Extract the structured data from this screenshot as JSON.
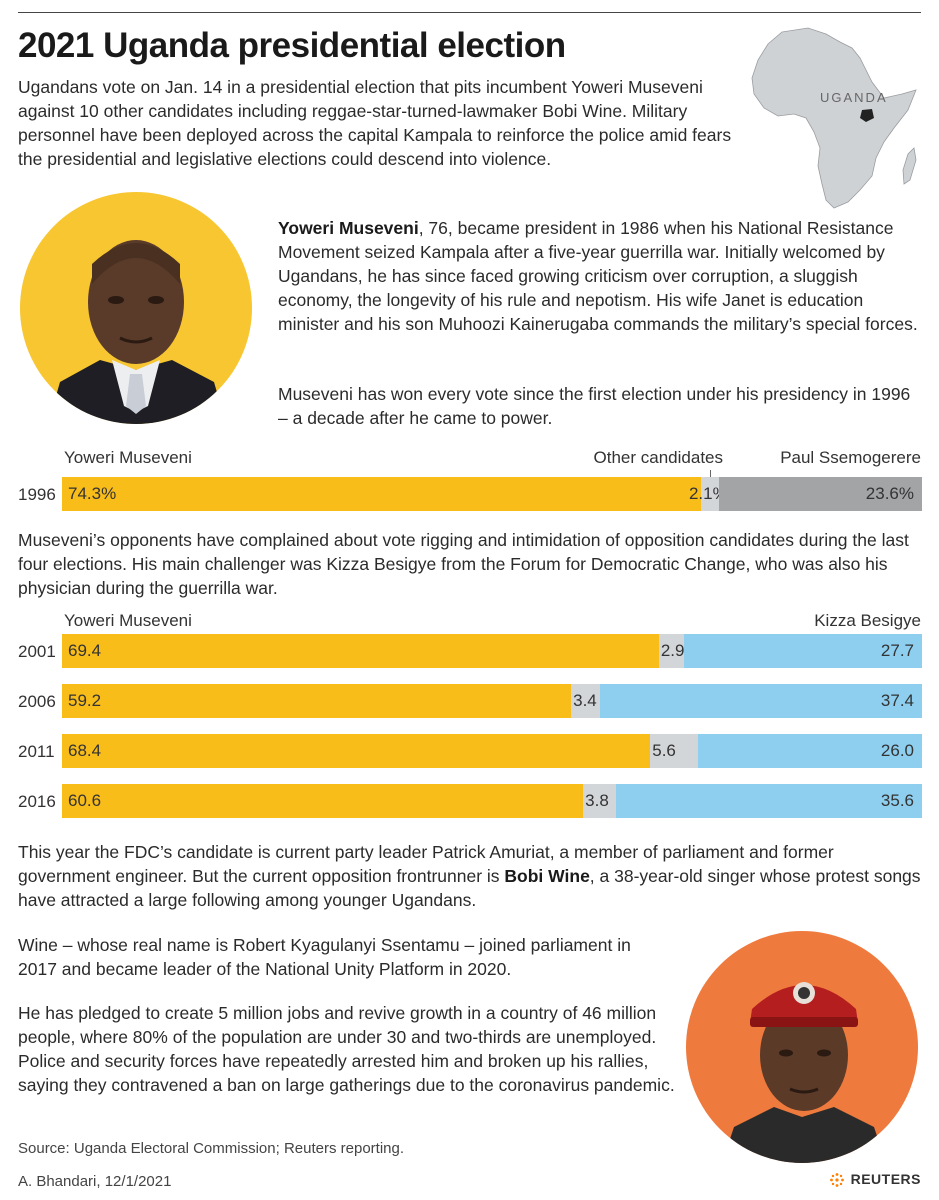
{
  "title": "2021 Uganda presidential election",
  "intro": "Ugandans vote on Jan. 14 in a presidential election that pits incumbent Yoweri Museveni against 10 other candidates including reggae-star-turned-lawmaker Bobi Wine. Military personnel have been deployed across the capital Kampala to reinforce the police amid fears the presidential and legislative elections could descend into violence.",
  "map": {
    "label": "UGANDA"
  },
  "museveni": {
    "name": "Yoweri Museveni",
    "bio_rest": ", 76, became president in 1986 when his National Resistance Movement seized Kampala after a five-year guerrilla war. Initially welcomed by Ugandans, he has since faced growing criticism over corruption, a sluggish economy, the longevity of his rule and nepotism. His wife Janet is education minister and his son Muhoozi Kainerugaba commands the military’s special forces.",
    "bio2": "Museveni has won every vote since the first election under his presidency in 1996 – a decade after he came to power."
  },
  "para_opponents": "Museveni’s opponents have complained about vote rigging and intimidation of opposition candidates during the last four elections. His main challenger was Kizza Besigye from the Forum for Democratic Change, who was also his physician during the guerrilla war.",
  "para_fdc_start": "This year the FDC’s candidate is current party leader Patrick Amuriat, a member of parliament and former government engineer. But the current opposition frontrunner is ",
  "para_fdc_name": "Bobi Wine",
  "para_fdc_end": ", a 38-year-old singer whose protest songs have attracted a large following among younger Ugandans.",
  "para_wine1": "Wine – whose real name is Robert Kyagulanyi Ssentamu – joined parliament in 2017 and became leader of the National Unity Platform in 2020.",
  "para_wine2": "He has pledged to create 5 million jobs and revive growth in a country of 46 million people, where 80% of the population are under 30 and two-thirds are unemployed. Police and security forces have repeatedly arrested him and broken up his rallies, saying they contravened a ban on large gatherings due to the coronavirus pandemic.",
  "source": "Source: Uganda Electoral Commission; Reuters reporting.",
  "credit": "A. Bhandari, 12/1/2021",
  "brand": "REUTERS",
  "colors": {
    "museveni": "#f9bd1a",
    "other": "#d3d6d9",
    "ssemogerere": "#a3a4a6",
    "besigye": "#8ecff0"
  },
  "chart_data": [
    {
      "type": "bar",
      "stacked": true,
      "orientation": "horizontal",
      "categories": [
        "1996"
      ],
      "series": [
        {
          "name": "Yoweri Museveni",
          "values": [
            74.3
          ],
          "labels": [
            "74.3%"
          ]
        },
        {
          "name": "Other candidates",
          "values": [
            2.1
          ],
          "labels": [
            "2.1%"
          ]
        },
        {
          "name": "Paul Ssemogerere",
          "values": [
            23.6
          ],
          "labels": [
            "23.6%"
          ]
        }
      ]
    },
    {
      "type": "bar",
      "stacked": true,
      "orientation": "horizontal",
      "categories": [
        "2001",
        "2006",
        "2011",
        "2016"
      ],
      "series": [
        {
          "name": "Yoweri Museveni",
          "values": [
            69.4,
            59.2,
            68.4,
            60.6
          ],
          "labels": [
            "69.4",
            "59.2",
            "68.4",
            "60.6"
          ]
        },
        {
          "name": "",
          "values": [
            2.9,
            3.4,
            5.6,
            3.8
          ],
          "labels": [
            "2.9",
            "3.4",
            "5.6",
            "3.8"
          ]
        },
        {
          "name": "Kizza Besigye",
          "values": [
            27.7,
            37.4,
            26.0,
            35.6
          ],
          "labels": [
            "27.7",
            "37.4",
            "26.0",
            "35.6"
          ]
        }
      ]
    }
  ]
}
